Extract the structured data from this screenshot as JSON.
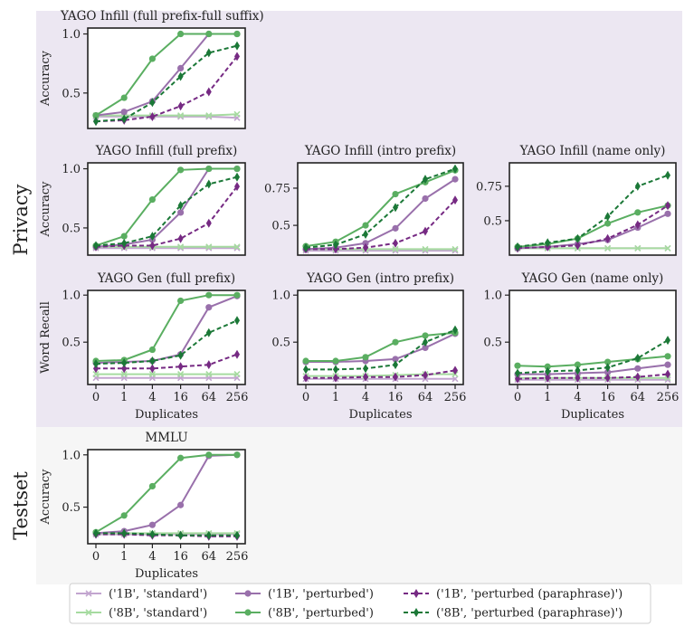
{
  "groups": [
    {
      "label": "Privacy",
      "color": "#ece7f2"
    },
    {
      "label": "Testset",
      "color": "#f6f6f6"
    }
  ],
  "x_categories": [
    "0",
    "1",
    "4",
    "16",
    "64",
    "256"
  ],
  "axis_label_x": "Duplicates",
  "legend": [
    {
      "label": "('1B', 'standard')",
      "color": "#c2a5cf",
      "marker": "x",
      "dash": false
    },
    {
      "label": "('8B', 'standard')",
      "color": "#a6dba0",
      "marker": "x",
      "dash": false
    },
    {
      "label": "('1B', 'perturbed')",
      "color": "#9970ab",
      "marker": "circle",
      "dash": false
    },
    {
      "label": "('8B', 'perturbed')",
      "color": "#5aae61",
      "marker": "circle",
      "dash": false
    },
    {
      "label": "('1B', 'perturbed (paraphrase)')",
      "color": "#762a83",
      "marker": "diamond",
      "dash": true
    },
    {
      "label": "('8B', 'perturbed (paraphrase)')",
      "color": "#1b7837",
      "marker": "diamond",
      "dash": true
    }
  ],
  "chart_data": [
    {
      "type": "line",
      "title": "YAGO Infill (full prefix-full suffix)",
      "ylabel": "Accuracy",
      "ylim": [
        0.2,
        1.05
      ],
      "yticks": [
        0.5,
        1.0
      ],
      "show_xticks": false,
      "xlabel": "",
      "series": [
        {
          "name": "('1B', 'standard')",
          "values": [
            0.3,
            0.3,
            0.3,
            0.3,
            0.3,
            0.29
          ]
        },
        {
          "name": "('8B', 'standard')",
          "values": [
            0.31,
            0.31,
            0.31,
            0.31,
            0.31,
            0.32
          ]
        },
        {
          "name": "('1B', 'perturbed')",
          "values": [
            0.31,
            0.34,
            0.43,
            0.71,
            1.0,
            1.0
          ]
        },
        {
          "name": "('8B', 'perturbed')",
          "values": [
            0.31,
            0.46,
            0.79,
            1.0,
            1.0,
            1.0
          ]
        },
        {
          "name": "('1B', 'perturbed (paraphrase)')",
          "values": [
            0.26,
            0.27,
            0.3,
            0.39,
            0.51,
            0.81
          ]
        },
        {
          "name": "('8B', 'perturbed (paraphrase)')",
          "values": [
            0.26,
            0.28,
            0.42,
            0.64,
            0.84,
            0.9
          ]
        }
      ]
    },
    {
      "type": "line",
      "title": "YAGO Infill (full prefix)",
      "ylabel": "Accuracy",
      "ylim": [
        0.27,
        1.05
      ],
      "yticks": [
        0.5,
        1.0
      ],
      "show_xticks": false,
      "xlabel": "",
      "series": [
        {
          "name": "('1B', 'standard')",
          "values": [
            0.33,
            0.33,
            0.33,
            0.33,
            0.33,
            0.33
          ]
        },
        {
          "name": "('8B', 'standard')",
          "values": [
            0.34,
            0.34,
            0.34,
            0.34,
            0.34,
            0.34
          ]
        },
        {
          "name": "('1B', 'perturbed')",
          "values": [
            0.34,
            0.36,
            0.4,
            0.63,
            1.0,
            1.0
          ]
        },
        {
          "name": "('8B', 'perturbed')",
          "values": [
            0.35,
            0.43,
            0.74,
            0.99,
            1.0,
            1.0
          ]
        },
        {
          "name": "('1B', 'perturbed (paraphrase)')",
          "values": [
            0.34,
            0.35,
            0.35,
            0.41,
            0.54,
            0.85
          ]
        },
        {
          "name": "('8B', 'perturbed (paraphrase)')",
          "values": [
            0.35,
            0.37,
            0.43,
            0.69,
            0.87,
            0.93
          ]
        }
      ]
    },
    {
      "type": "line",
      "title": "YAGO Infill (intro prefix)",
      "ylabel": "",
      "ylim": [
        0.3,
        0.92
      ],
      "yticks": [
        0.5,
        0.75
      ],
      "show_xticks": false,
      "xlabel": "",
      "series": [
        {
          "name": "('1B', 'standard')",
          "values": [
            0.33,
            0.33,
            0.33,
            0.33,
            0.33,
            0.33
          ]
        },
        {
          "name": "('8B', 'standard')",
          "values": [
            0.34,
            0.34,
            0.34,
            0.34,
            0.34,
            0.34
          ]
        },
        {
          "name": "('1B', 'perturbed')",
          "values": [
            0.34,
            0.35,
            0.38,
            0.48,
            0.68,
            0.81
          ]
        },
        {
          "name": "('8B', 'perturbed')",
          "values": [
            0.36,
            0.39,
            0.5,
            0.71,
            0.79,
            0.87
          ]
        },
        {
          "name": "('1B', 'perturbed (paraphrase)')",
          "values": [
            0.34,
            0.34,
            0.35,
            0.38,
            0.46,
            0.67
          ]
        },
        {
          "name": "('8B', 'perturbed (paraphrase)')",
          "values": [
            0.35,
            0.37,
            0.44,
            0.62,
            0.81,
            0.88
          ]
        }
      ]
    },
    {
      "type": "line",
      "title": "YAGO Infill (name only)",
      "ylabel": "",
      "ylim": [
        0.25,
        0.92
      ],
      "yticks": [
        0.5,
        0.75
      ],
      "show_xticks": false,
      "xlabel": "",
      "series": [
        {
          "name": "('1B', 'standard')",
          "values": [
            0.3,
            0.3,
            0.3,
            0.3,
            0.3,
            0.3
          ]
        },
        {
          "name": "('8B', 'standard')",
          "values": [
            0.3,
            0.3,
            0.3,
            0.3,
            0.3,
            0.3
          ]
        },
        {
          "name": "('1B', 'perturbed')",
          "values": [
            0.3,
            0.31,
            0.33,
            0.36,
            0.45,
            0.55
          ]
        },
        {
          "name": "('8B', 'perturbed')",
          "values": [
            0.31,
            0.33,
            0.37,
            0.48,
            0.56,
            0.61
          ]
        },
        {
          "name": "('1B', 'perturbed (paraphrase)')",
          "values": [
            0.3,
            0.31,
            0.32,
            0.37,
            0.47,
            0.61
          ]
        },
        {
          "name": "('8B', 'perturbed (paraphrase)')",
          "values": [
            0.31,
            0.34,
            0.37,
            0.53,
            0.75,
            0.83
          ]
        }
      ]
    },
    {
      "type": "line",
      "title": "YAGO Gen (full prefix)",
      "ylabel": "Word Recall",
      "ylim": [
        0.05,
        1.05
      ],
      "yticks": [
        0.5,
        1.0
      ],
      "show_xticks": true,
      "xlabel": "Duplicates",
      "series": [
        {
          "name": "('1B', 'standard')",
          "values": [
            0.12,
            0.12,
            0.12,
            0.12,
            0.12,
            0.12
          ]
        },
        {
          "name": "('8B', 'standard')",
          "values": [
            0.16,
            0.16,
            0.16,
            0.16,
            0.16,
            0.16
          ]
        },
        {
          "name": "('1B', 'perturbed')",
          "values": [
            0.28,
            0.29,
            0.3,
            0.37,
            0.87,
            0.99
          ]
        },
        {
          "name": "('8B', 'perturbed')",
          "values": [
            0.3,
            0.31,
            0.42,
            0.94,
            1.0,
            1.0
          ]
        },
        {
          "name": "('1B', 'perturbed (paraphrase)')",
          "values": [
            0.22,
            0.22,
            0.22,
            0.24,
            0.26,
            0.37
          ]
        },
        {
          "name": "('8B', 'perturbed (paraphrase)')",
          "values": [
            0.27,
            0.28,
            0.3,
            0.36,
            0.6,
            0.73
          ]
        }
      ]
    },
    {
      "type": "line",
      "title": "YAGO Gen (intro prefix)",
      "ylabel": "",
      "ylim": [
        0.05,
        1.05
      ],
      "yticks": [
        0.5,
        1.0
      ],
      "show_xticks": true,
      "xlabel": "Duplicates",
      "series": [
        {
          "name": "('1B', 'standard')",
          "values": [
            0.11,
            0.11,
            0.11,
            0.11,
            0.11,
            0.11
          ]
        },
        {
          "name": "('8B', 'standard')",
          "values": [
            0.14,
            0.14,
            0.14,
            0.15,
            0.16,
            0.16
          ]
        },
        {
          "name": "('1B', 'perturbed')",
          "values": [
            0.29,
            0.29,
            0.3,
            0.32,
            0.44,
            0.59
          ]
        },
        {
          "name": "('8B', 'perturbed')",
          "values": [
            0.3,
            0.3,
            0.34,
            0.5,
            0.57,
            0.6
          ]
        },
        {
          "name": "('1B', 'perturbed (paraphrase)')",
          "values": [
            0.12,
            0.12,
            0.13,
            0.13,
            0.15,
            0.2
          ]
        },
        {
          "name": "('8B', 'perturbed (paraphrase)')",
          "values": [
            0.21,
            0.21,
            0.22,
            0.26,
            0.5,
            0.63
          ]
        }
      ]
    },
    {
      "type": "line",
      "title": "YAGO Gen (name only)",
      "ylabel": "",
      "ylim": [
        0.05,
        1.05
      ],
      "yticks": [
        0.5,
        1.0
      ],
      "show_xticks": true,
      "xlabel": "Duplicates",
      "series": [
        {
          "name": "('1B', 'standard')",
          "values": [
            0.1,
            0.1,
            0.1,
            0.1,
            0.1,
            0.1
          ]
        },
        {
          "name": "('8B', 'standard')",
          "values": [
            0.12,
            0.12,
            0.12,
            0.12,
            0.12,
            0.12
          ]
        },
        {
          "name": "('1B', 'perturbed')",
          "values": [
            0.16,
            0.16,
            0.17,
            0.18,
            0.22,
            0.26
          ]
        },
        {
          "name": "('8B', 'perturbed')",
          "values": [
            0.25,
            0.24,
            0.26,
            0.29,
            0.32,
            0.35
          ]
        },
        {
          "name": "('1B', 'perturbed (paraphrase)')",
          "values": [
            0.11,
            0.12,
            0.12,
            0.12,
            0.13,
            0.16
          ]
        },
        {
          "name": "('8B', 'perturbed (paraphrase)')",
          "values": [
            0.17,
            0.19,
            0.2,
            0.23,
            0.33,
            0.52
          ]
        }
      ]
    },
    {
      "type": "line",
      "title": "MMLU",
      "ylabel": "Accuracy",
      "ylim": [
        0.15,
        1.05
      ],
      "yticks": [
        0.5,
        1.0
      ],
      "show_xticks": true,
      "xlabel": "Duplicates",
      "series": [
        {
          "name": "('1B', 'standard')",
          "values": [
            0.24,
            0.24,
            0.24,
            0.24,
            0.24,
            0.24
          ]
        },
        {
          "name": "('8B', 'standard')",
          "values": [
            0.25,
            0.25,
            0.25,
            0.25,
            0.25,
            0.25
          ]
        },
        {
          "name": "('1B', 'perturbed')",
          "values": [
            0.25,
            0.27,
            0.33,
            0.52,
            0.99,
            1.0
          ]
        },
        {
          "name": "('8B', 'perturbed')",
          "values": [
            0.26,
            0.42,
            0.7,
            0.97,
            1.0,
            1.0
          ]
        },
        {
          "name": "('1B', 'perturbed (paraphrase)')",
          "values": [
            0.24,
            0.24,
            0.23,
            0.23,
            0.22,
            0.22
          ]
        },
        {
          "name": "('8B', 'perturbed (paraphrase)')",
          "values": [
            0.25,
            0.25,
            0.24,
            0.23,
            0.23,
            0.23
          ]
        }
      ]
    }
  ]
}
